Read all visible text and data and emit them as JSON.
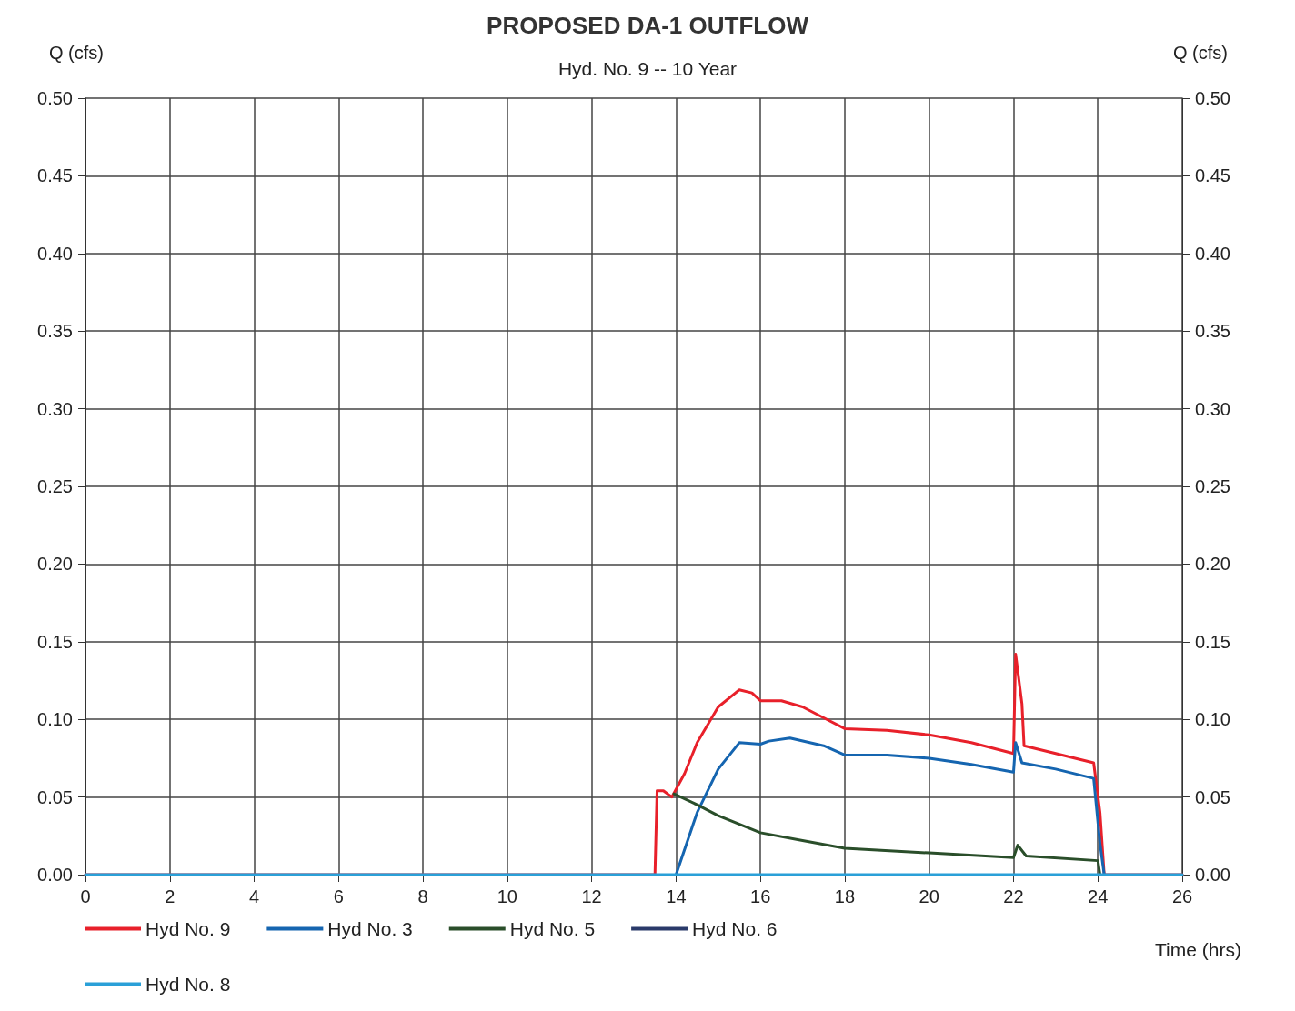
{
  "chart_data": {
    "type": "line",
    "title": "PROPOSED DA-1 OUTFLOW",
    "subtitle": "Hyd. No. 9 -- 10 Year",
    "xlabel": "Time (hrs)",
    "ylabel": "Q (cfs)",
    "y2label": "Q (cfs)",
    "xlim": [
      0,
      26
    ],
    "xticks": [
      0,
      2,
      4,
      6,
      8,
      10,
      12,
      14,
      16,
      18,
      20,
      22,
      24,
      26
    ],
    "ylim": [
      0,
      0.5
    ],
    "yticks": [
      {
        "value": 0,
        "label": "0.00"
      },
      {
        "value": 0.05,
        "label": "0.05"
      },
      {
        "value": 0.1,
        "label": "0.10"
      },
      {
        "value": 0.15,
        "label": "0.15"
      },
      {
        "value": 0.2,
        "label": "0.20"
      },
      {
        "value": 0.25,
        "label": "0.25"
      },
      {
        "value": 0.3,
        "label": "0.30"
      },
      {
        "value": 0.35,
        "label": "0.35"
      },
      {
        "value": 0.4,
        "label": "0.40"
      },
      {
        "value": 0.45,
        "label": "0.45"
      },
      {
        "value": 0.5,
        "label": "0.50"
      }
    ],
    "y2lim": [
      0,
      0.5
    ],
    "y2ticks": [
      {
        "value": 0,
        "label": "0.00"
      },
      {
        "value": 0.05,
        "label": "0.05"
      },
      {
        "value": 0.1,
        "label": "0.10"
      },
      {
        "value": 0.15,
        "label": "0.15"
      },
      {
        "value": 0.2,
        "label": "0.20"
      },
      {
        "value": 0.25,
        "label": "0.25"
      },
      {
        "value": 0.3,
        "label": "0.30"
      },
      {
        "value": 0.35,
        "label": "0.35"
      },
      {
        "value": 0.4,
        "label": "0.40"
      },
      {
        "value": 0.45,
        "label": "0.45"
      },
      {
        "value": 0.5,
        "label": "0.50"
      }
    ],
    "grid": true,
    "legend": "bottom",
    "marker": "none",
    "series": [
      {
        "name": "Hyd No. 9",
        "color": "#e8202a",
        "x": [
          0,
          13.5,
          13.55,
          13.7,
          13.9,
          14.2,
          14.5,
          15,
          15.5,
          15.8,
          16,
          16.5,
          17,
          17.5,
          18,
          19,
          20,
          21,
          22,
          22.05,
          22.2,
          22.25,
          23,
          23.9,
          24.05,
          24.15,
          26
        ],
        "values": [
          0,
          0,
          0.054,
          0.054,
          0.05,
          0.065,
          0.085,
          0.108,
          0.119,
          0.117,
          0.112,
          0.112,
          0.108,
          0.101,
          0.094,
          0.093,
          0.09,
          0.085,
          0.078,
          0.142,
          0.11,
          0.083,
          0.078,
          0.072,
          0.04,
          0,
          0
        ]
      },
      {
        "name": "Hyd No. 3",
        "color": "#1565b0",
        "x": [
          14,
          14.5,
          15,
          15.5,
          16,
          16.2,
          16.7,
          17.5,
          18,
          19,
          20,
          21,
          22,
          22.05,
          22.2,
          23,
          23.9,
          24.05,
          24.15
        ],
        "values": [
          0,
          0.04,
          0.068,
          0.085,
          0.084,
          0.086,
          0.088,
          0.083,
          0.077,
          0.077,
          0.075,
          0.071,
          0.066,
          0.085,
          0.072,
          0.068,
          0.062,
          0.02,
          0
        ]
      },
      {
        "name": "Hyd No. 5",
        "color": "#2a4e2a",
        "x": [
          13.95,
          14.5,
          15,
          16,
          17,
          18,
          20,
          22,
          22.1,
          22.3,
          24,
          24.05
        ],
        "values": [
          0.052,
          0.045,
          0.038,
          0.027,
          0.022,
          0.017,
          0.014,
          0.011,
          0.019,
          0.012,
          0.009,
          0
        ]
      },
      {
        "name": "Hyd No. 6",
        "color": "#2a3a6a"
      },
      {
        "name": "Hyd No. 8",
        "color": "#2aa0d8",
        "x": [
          0,
          26
        ],
        "values": [
          0,
          0
        ]
      }
    ]
  }
}
